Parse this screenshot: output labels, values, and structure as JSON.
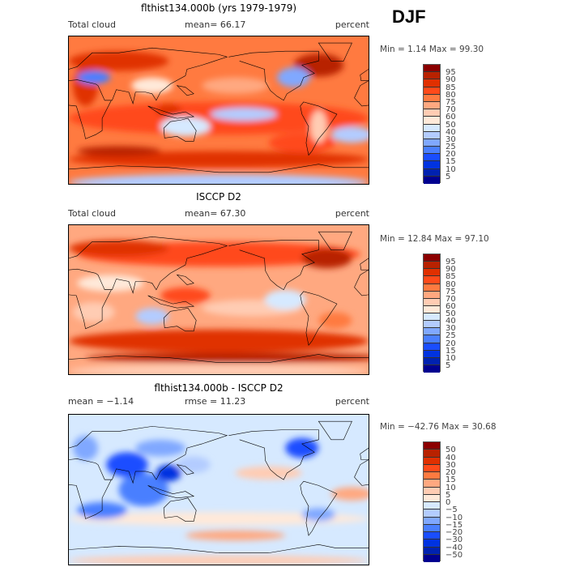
{
  "season": "DJF",
  "colorbar_colors": [
    "#8b0000",
    "#b82200",
    "#e03000",
    "#ff4a1a",
    "#ff7a40",
    "#ffa880",
    "#ffccb3",
    "#ffe9d9",
    "#d6e9ff",
    "#b3ccff",
    "#80a8ff",
    "#4a7fff",
    "#1a4dff",
    "#0033e0",
    "#0022b0",
    "#000090"
  ],
  "panels": [
    {
      "title": "flthist134.000b (yrs 1979-1979)",
      "left": "Total cloud",
      "middle": "mean=  66.17",
      "units": "percent",
      "minmax": "Min =    1.14  Max =   99.30",
      "levels": [
        "95",
        "90",
        "85",
        "80",
        "75",
        "70",
        "60",
        "50",
        "40",
        "30",
        "25",
        "20",
        "15",
        "10",
        "5"
      ]
    },
    {
      "title": "ISCCP D2",
      "left": "Total cloud",
      "middle": "mean=  67.30",
      "units": "percent",
      "minmax": "Min =   12.84  Max =   97.10",
      "levels": [
        "95",
        "90",
        "85",
        "80",
        "75",
        "70",
        "60",
        "50",
        "40",
        "30",
        "25",
        "20",
        "15",
        "10",
        "5"
      ]
    },
    {
      "title": "flthist134.000b - ISCCP D2",
      "left": "mean =   −1.14",
      "middle": "rmse =   11.23",
      "units": "percent",
      "minmax": "Min = −42.76  Max =   30.68",
      "levels": [
        "50",
        "40",
        "30",
        "20",
        "15",
        "10",
        "5",
        "0",
        "−5",
        "−10",
        "−15",
        "−20",
        "−30",
        "−40",
        "−50"
      ]
    }
  ]
}
